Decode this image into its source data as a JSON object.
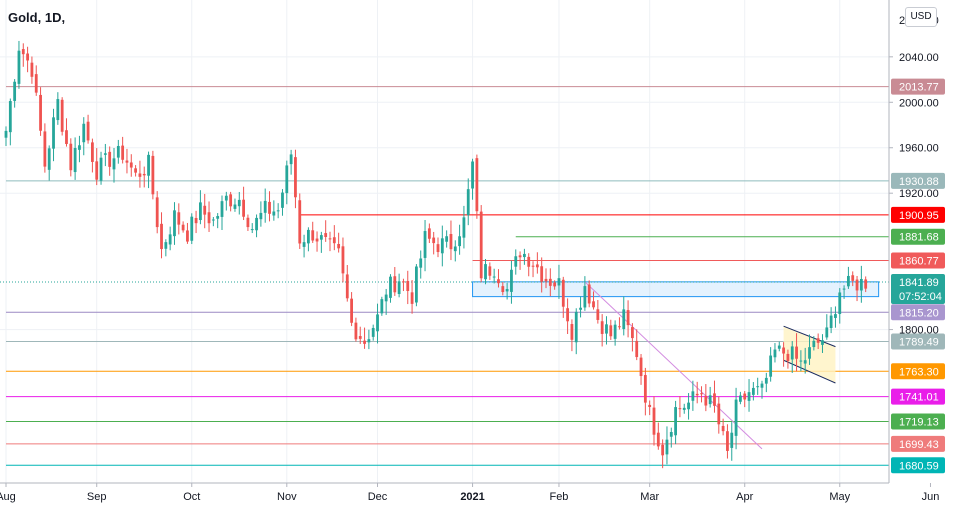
{
  "header": {
    "symbol": "Gold",
    "interval": "1D",
    "currency": "USD"
  },
  "chart_data": {
    "type": "candlestick",
    "title": "Gold, 1D",
    "ylim": [
      1665,
      2090
    ],
    "y_ticks": [
      1800,
      1920,
      1960,
      2000,
      2040
    ],
    "y_tick_labels": [
      "1800.00",
      "1920.00",
      "1960.00",
      "2000.00",
      "2040.00"
    ],
    "top_clipped_label": "2080.00",
    "x_labels": [
      {
        "label": "Aug",
        "index": 0
      },
      {
        "label": "Sep",
        "index": 21
      },
      {
        "label": "Oct",
        "index": 43
      },
      {
        "label": "Nov",
        "index": 65
      },
      {
        "label": "Dec",
        "index": 86
      },
      {
        "label": "2021",
        "index": 108
      },
      {
        "label": "Feb",
        "index": 128
      },
      {
        "label": "Mar",
        "index": 149
      },
      {
        "label": "Apr",
        "index": 171
      },
      {
        "label": "May",
        "index": 193
      },
      {
        "label": "Jun",
        "index": 214
      }
    ],
    "candle_count_visible": 200,
    "future_bars": 24,
    "close_anchors": [
      [
        0,
        1975
      ],
      [
        3,
        2050
      ],
      [
        6,
        2030
      ],
      [
        9,
        1945
      ],
      [
        12,
        2000
      ],
      [
        15,
        1945
      ],
      [
        18,
        1980
      ],
      [
        21,
        1940
      ],
      [
        24,
        1950
      ],
      [
        27,
        1955
      ],
      [
        30,
        1935
      ],
      [
        33,
        1945
      ],
      [
        36,
        1870
      ],
      [
        39,
        1900
      ],
      [
        42,
        1885
      ],
      [
        45,
        1905
      ],
      [
        48,
        1895
      ],
      [
        51,
        1915
      ],
      [
        54,
        1915
      ],
      [
        57,
        1890
      ],
      [
        60,
        1905
      ],
      [
        63,
        1905
      ],
      [
        66,
        1955
      ],
      [
        68,
        1880
      ],
      [
        71,
        1885
      ],
      [
        74,
        1875
      ],
      [
        77,
        1865
      ],
      [
        80,
        1805
      ],
      [
        83,
        1790
      ],
      [
        86,
        1810
      ],
      [
        88,
        1835
      ],
      [
        91,
        1845
      ],
      [
        94,
        1830
      ],
      [
        97,
        1880
      ],
      [
        100,
        1875
      ],
      [
        103,
        1875
      ],
      [
        106,
        1895
      ],
      [
        108,
        1945
      ],
      [
        110,
        1850
      ],
      [
        113,
        1855
      ],
      [
        116,
        1835
      ],
      [
        119,
        1870
      ],
      [
        122,
        1860
      ],
      [
        125,
        1845
      ],
      [
        128,
        1840
      ],
      [
        131,
        1800
      ],
      [
        134,
        1840
      ],
      [
        137,
        1810
      ],
      [
        140,
        1795
      ],
      [
        143,
        1810
      ],
      [
        146,
        1780
      ],
      [
        149,
        1725
      ],
      [
        152,
        1695
      ],
      [
        155,
        1730
      ],
      [
        158,
        1735
      ],
      [
        161,
        1745
      ],
      [
        164,
        1730
      ],
      [
        167,
        1690
      ],
      [
        169,
        1730
      ],
      [
        172,
        1745
      ],
      [
        175,
        1745
      ],
      [
        178,
        1780
      ],
      [
        181,
        1780
      ],
      [
        184,
        1770
      ],
      [
        187,
        1785
      ],
      [
        190,
        1795
      ],
      [
        193,
        1835
      ],
      [
        196,
        1840
      ],
      [
        199,
        1842
      ]
    ],
    "levels": [
      {
        "value": 2013.77,
        "label": "2013.77",
        "color": "#c98b94",
        "label_bg": "#c98b94",
        "start_index": 0,
        "width": 1
      },
      {
        "value": 1930.88,
        "label": "1930.88",
        "color": "#8fbcbd",
        "label_bg": "#9ab8ba",
        "start_index": 0,
        "width": 1
      },
      {
        "value": 1900.95,
        "label": "1900.95",
        "color": "#ff0000",
        "label_bg": "#ff0000",
        "start_index": 68,
        "width": 1
      },
      {
        "value": 1881.68,
        "label": "1881.68",
        "color": "#4caf50",
        "label_bg": "#4caf50",
        "start_index": 118,
        "width": 1
      },
      {
        "value": 1860.77,
        "label": "1860.77",
        "color": "#f05a5a",
        "label_bg": "#f05a5a",
        "start_index": 108,
        "width": 1
      },
      {
        "value": 1815.2,
        "label": "1815.20",
        "color": "#9b89c4",
        "label_bg": "#a996cf",
        "start_index": 0,
        "width": 1
      },
      {
        "value": 1789.49,
        "label": "1789.49",
        "color": "#9fb7b9",
        "label_bg": "#9fb7b9",
        "start_index": 0,
        "width": 1
      },
      {
        "value": 1763.3,
        "label": "1763.30",
        "color": "#ff9800",
        "label_bg": "#ff9800",
        "start_index": 0,
        "width": 1
      },
      {
        "value": 1741.01,
        "label": "1741.01",
        "color": "#e91ee9",
        "label_bg": "#e91ee9",
        "start_index": 0,
        "width": 1
      },
      {
        "value": 1719.13,
        "label": "1719.13",
        "color": "#4caf50",
        "label_bg": "#4caf50",
        "start_index": 0,
        "width": 1
      },
      {
        "value": 1699.43,
        "label": "1699.43",
        "color": "#ef7b7b",
        "label_bg": "#ef7b7b",
        "start_index": 0,
        "width": 1
      },
      {
        "value": 1680.59,
        "label": "1680.59",
        "color": "#00b5b5",
        "label_bg": "#00b5b5",
        "start_index": 0,
        "width": 1
      }
    ],
    "current_price": {
      "value": 1841.89,
      "label": "1841.89",
      "countdown": "07:52:04",
      "color": "#26a69a"
    },
    "zone": {
      "top": 1842,
      "bottom": 1829,
      "start_index": 108,
      "end_index": 202,
      "color": "#2196f3"
    },
    "trendline": {
      "from": [
        134,
        1842
      ],
      "to": [
        175,
        1695
      ],
      "color": "#d38ce0"
    },
    "channel": {
      "upper": [
        [
          180,
          1803
        ],
        [
          192,
          1785
        ]
      ],
      "lower": [
        [
          180,
          1773
        ],
        [
          192,
          1753
        ]
      ],
      "color": "#1a2a60",
      "fill": "#fff2c2"
    },
    "colors": {
      "up": "#26a69a",
      "down": "#ef5350",
      "grid": "#eef1f5",
      "axis_text": "#131722"
    }
  }
}
